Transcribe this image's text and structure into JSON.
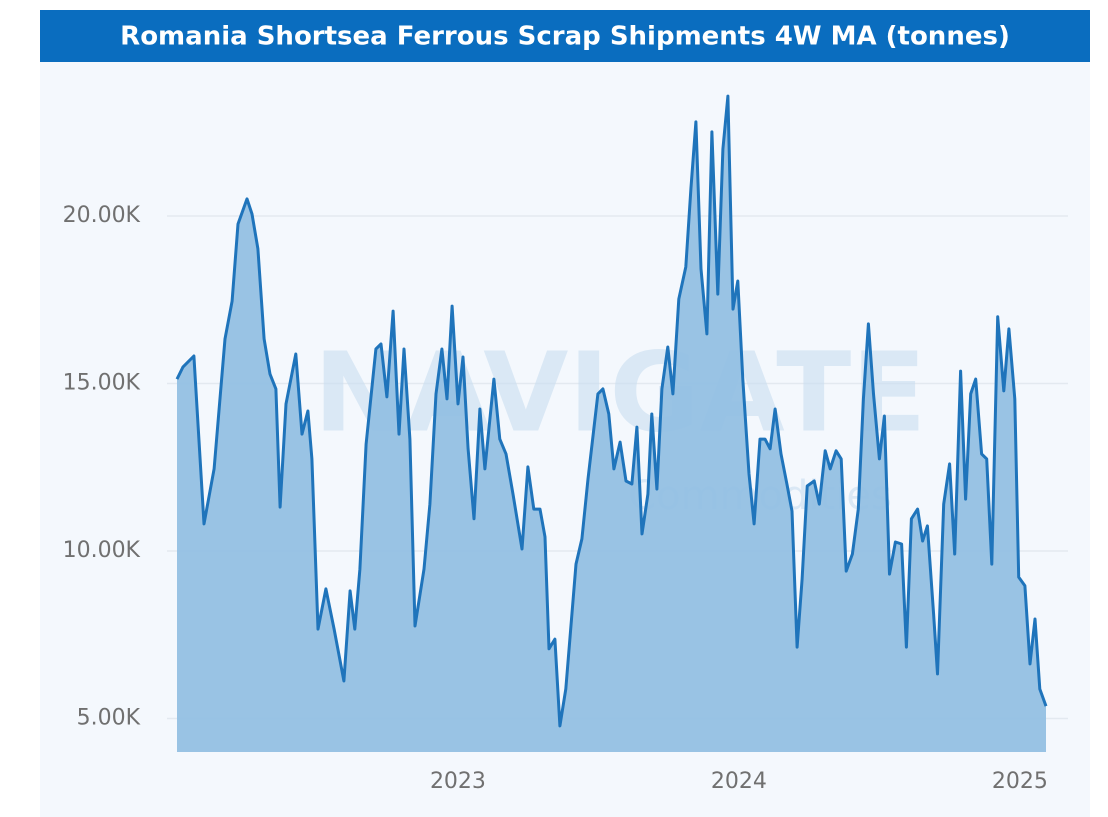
{
  "chart_data": {
    "type": "area",
    "title": "Romania Shortsea Ferrous Scrap Shipments 4W MA (tonnes)",
    "watermark": "NAVIGATE",
    "watermark_subtitle": "Commodities",
    "line_color": "#1f74bb",
    "fill_color": "#93c0e3",
    "grid": true,
    "xlim": [
      2022.0,
      2025.15
    ],
    "xticks": [
      2023,
      2024,
      2025
    ],
    "ylim": [
      4000,
      24000
    ],
    "yticks": [
      {
        "value": 5000,
        "label": "5.00K"
      },
      {
        "value": 10000,
        "label": "10.00K"
      },
      {
        "value": 15000,
        "label": "15.00K"
      },
      {
        "value": 20000,
        "label": "20.00K"
      }
    ],
    "x": [
      2022.0,
      2022.021,
      2022.06,
      2022.096,
      2022.132,
      2022.171,
      2022.196,
      2022.217,
      2022.249,
      2022.267,
      2022.288,
      2022.31,
      2022.331,
      2022.352,
      2022.367,
      2022.388,
      2022.423,
      2022.445,
      2022.466,
      2022.48,
      2022.502,
      2022.53,
      2022.559,
      2022.594,
      2022.616,
      2022.633,
      2022.651,
      2022.673,
      2022.708,
      2022.726,
      2022.747,
      2022.769,
      2022.79,
      2022.808,
      2022.829,
      2022.847,
      2022.879,
      2022.9,
      2022.922,
      2022.943,
      2022.961,
      2022.979,
      2023.0,
      2023.018,
      2023.036,
      2023.057,
      2023.078,
      2023.096,
      2023.128,
      2023.149,
      2023.171,
      2023.196,
      2023.228,
      2023.249,
      2023.27,
      2023.292,
      2023.31,
      2023.324,
      2023.345,
      2023.363,
      2023.384,
      2023.42,
      2023.441,
      2023.463,
      2023.498,
      2023.516,
      2023.537,
      2023.555,
      2023.577,
      2023.598,
      2023.619,
      2023.637,
      2023.655,
      2023.676,
      2023.69,
      2023.708,
      2023.726,
      2023.747,
      2023.765,
      2023.786,
      2023.811,
      2023.829,
      2023.847,
      2023.865,
      2023.886,
      2023.904,
      2023.925,
      2023.943,
      2023.961,
      2023.979,
      2023.996,
      2024.014,
      2024.036,
      2024.054,
      2024.075,
      2024.093,
      2024.111,
      2024.129,
      2024.15,
      2024.171,
      2024.189,
      2024.207,
      2024.225,
      2024.243,
      2024.268,
      2024.286,
      2024.307,
      2024.325,
      2024.346,
      2024.364,
      2024.382,
      2024.404,
      2024.425,
      2024.443,
      2024.461,
      2024.479,
      2024.5,
      2024.518,
      2024.536,
      2024.557,
      2024.579,
      2024.596,
      2024.614,
      2024.636,
      2024.654,
      2024.671,
      2024.693,
      2024.707,
      2024.729,
      2024.75,
      2024.768,
      2024.789,
      2024.807,
      2024.825,
      2024.843,
      2024.864,
      2024.882,
      2024.9,
      2024.921,
      2024.943,
      2024.961,
      2024.982,
      2024.996,
      2025.018,
      2025.036,
      2025.054,
      2025.071,
      2025.093
    ],
    "values": [
      15130,
      15490,
      15820,
      10810,
      12450,
      16330,
      17460,
      19760,
      20510,
      20060,
      19020,
      16330,
      15280,
      14840,
      11310,
      14390,
      15880,
      13490,
      14180,
      12750,
      7670,
      8870,
      7670,
      6120,
      8810,
      7670,
      9460,
      13190,
      16030,
      16180,
      14600,
      17160,
      13490,
      16030,
      13340,
      7760,
      9460,
      11400,
      14690,
      16030,
      14540,
      17310,
      14390,
      15790,
      13050,
      10960,
      14240,
      12450,
      15130,
      13340,
      12900,
      11700,
      10060,
      12510,
      11250,
      11250,
      10420,
      7080,
      7370,
      4780,
      5880,
      9610,
      10360,
      12150,
      14690,
      14840,
      14090,
      12450,
      13250,
      12090,
      12000,
      13700,
      10510,
      11700,
      14090,
      11850,
      14840,
      16090,
      14690,
      17520,
      18480,
      20810,
      22810,
      18420,
      16480,
      22510,
      17670,
      22000,
      23580,
      17220,
      18060,
      15130,
      12300,
      10810,
      13340,
      13340,
      13050,
      14240,
      12900,
      12000,
      11190,
      7130,
      9160,
      11940,
      12090,
      11400,
      12990,
      12450,
      12990,
      12750,
      9400,
      9910,
      11250,
      14540,
      16780,
      14690,
      12750,
      14030,
      9310,
      10270,
      10210,
      7130,
      10960,
      11250,
      10300,
      10750,
      8120,
      6330,
      11400,
      12600,
      9910,
      15370,
      11550,
      14690,
      15130,
      12900,
      12750,
      9610,
      16990,
      14780,
      16630,
      14540,
      9220,
      8960,
      6630,
      7970,
      5880,
      5370
    ]
  }
}
